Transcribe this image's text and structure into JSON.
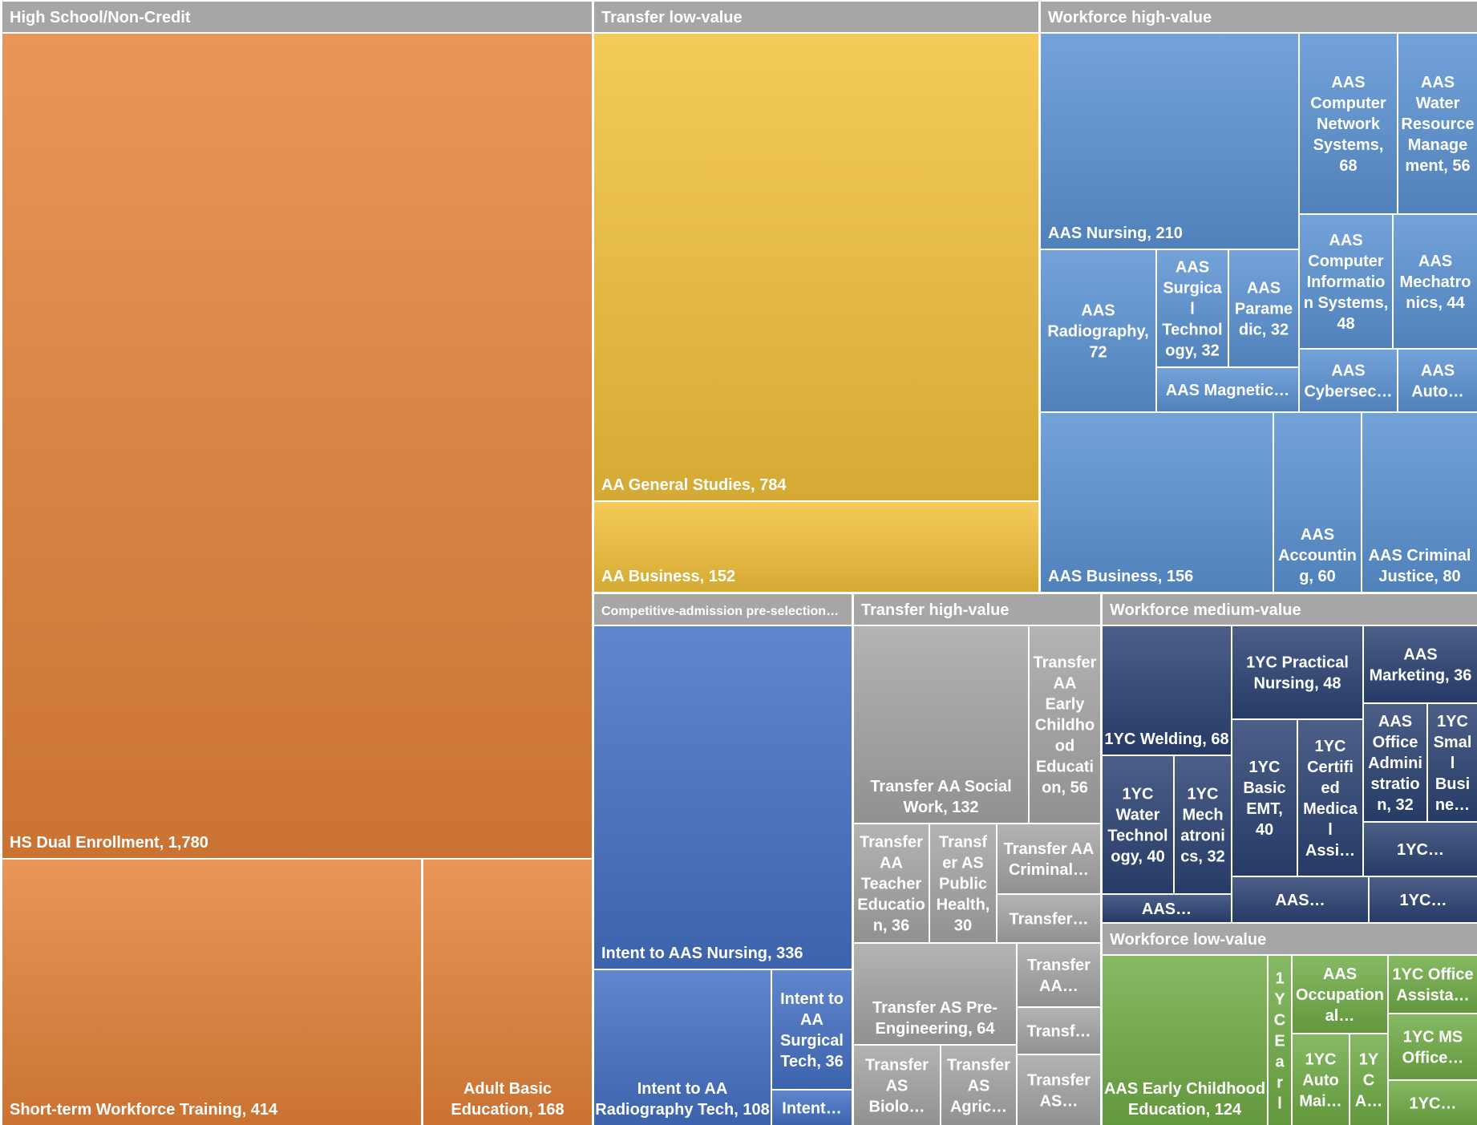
{
  "chart_data": {
    "type": "treemap",
    "groups": [
      {
        "name": "High School/Non-Credit",
        "color": "#E5833A",
        "items": [
          {
            "label": "HS Dual Enrollment, 1,780",
            "value": 1780
          },
          {
            "label": "Short-term Workforce Training, 414",
            "value": 414
          },
          {
            "label": "Adult Basic Education, 168",
            "value": 168
          }
        ]
      },
      {
        "name": "Transfer low-value",
        "color": "#F2C13B",
        "items": [
          {
            "label": "AA General Studies, 784",
            "value": 784
          },
          {
            "label": "AA Business, 152",
            "value": 152
          }
        ]
      },
      {
        "name": "Workforce high-value",
        "color": "#5B93D3",
        "items": [
          {
            "label": "AAS Nursing, 210",
            "value": 210
          },
          {
            "label": "AAS Computer Network Systems, 68",
            "value": 68
          },
          {
            "label": "AAS Water Resource Management, 56",
            "value": 56
          },
          {
            "label": "AAS Computer Information Systems, 48",
            "value": 48
          },
          {
            "label": "AAS Mechatronics, 44",
            "value": 44
          },
          {
            "label": "AAS Cybersec…",
            "value": null
          },
          {
            "label": "AAS Auto…",
            "value": null
          },
          {
            "label": "AAS Radiography, 72",
            "value": 72
          },
          {
            "label": "AAS Surgical Technology, 32",
            "value": 32
          },
          {
            "label": "AAS Paramedic, 32",
            "value": 32
          },
          {
            "label": "AAS Magnetic…",
            "value": null
          },
          {
            "label": "AAS Business, 156",
            "value": 156
          },
          {
            "label": "AAS Accounting, 60",
            "value": 60
          },
          {
            "label": "AAS Criminal Justice, 80",
            "value": 80
          }
        ]
      },
      {
        "name": "Competitive-admission pre-selection…",
        "color": "#4471C4",
        "items": [
          {
            "label": "Intent to AAS Nursing, 336",
            "value": 336
          },
          {
            "label": "Intent to AA Radiography Tech, 108",
            "value": 108
          },
          {
            "label": "Intent to AA Surgical Tech, 36",
            "value": 36
          },
          {
            "label": "Intent…",
            "value": null
          }
        ]
      },
      {
        "name": "Transfer high-value",
        "color": "#A5A5A5",
        "items": [
          {
            "label": "Transfer AA Social Work, 132",
            "value": 132
          },
          {
            "label": "Transfer AA Early Childhood Education, 56",
            "value": 56
          },
          {
            "label": "Transfer AA Teacher Education, 36",
            "value": 36
          },
          {
            "label": "Transfer AS Public Health, 30",
            "value": 30
          },
          {
            "label": "Transfer AA Criminal…",
            "value": null
          },
          {
            "label": "Transfer…",
            "value": null
          },
          {
            "label": "Transfer AS Pre-Engineering, 64",
            "value": 64
          },
          {
            "label": "Transfer AA…",
            "value": null
          },
          {
            "label": "Transf…",
            "value": null
          },
          {
            "label": "Transfer AS…",
            "value": null
          },
          {
            "label": "Transfer AS Biolo…",
            "value": null
          },
          {
            "label": "Transfer AS Agric…",
            "value": null
          }
        ]
      },
      {
        "name": "Workforce medium-value",
        "color": "#2B4373",
        "items": [
          {
            "label": "1YC Welding, 68",
            "value": 68
          },
          {
            "label": "1YC Practical Nursing, 48",
            "value": 48
          },
          {
            "label": "AAS Marketing, 36",
            "value": 36
          },
          {
            "label": "AAS Office Administration, 32",
            "value": 32
          },
          {
            "label": "1YC Small Busine…",
            "value": null
          },
          {
            "label": "1YC Water Technology, 40",
            "value": 40
          },
          {
            "label": "1YC Mechatronics, 32",
            "value": 32
          },
          {
            "label": "1YC Basic EMT, 40",
            "value": 40
          },
          {
            "label": "1YC Certified Medical Assi…",
            "value": null
          },
          {
            "label": "1YC…",
            "value": null
          },
          {
            "label": "AAS…",
            "value": null
          },
          {
            "label": "AAS…",
            "value": null
          },
          {
            "label": "1YC…",
            "value": null
          }
        ]
      },
      {
        "name": "Workforce low-value",
        "color": "#71AD47",
        "items": [
          {
            "label": "AAS Early Childhood Education, 124",
            "value": 124
          },
          {
            "label": "1YC Earl",
            "value": null
          },
          {
            "label": "AAS Occupational…",
            "value": null
          },
          {
            "label": "1YC Office Assista…",
            "value": null
          },
          {
            "label": "1YC MS Office…",
            "value": null
          },
          {
            "label": "1YC Auto Mai…",
            "value": null
          },
          {
            "label": "1YC A…",
            "value": null
          },
          {
            "label": "1YC…",
            "value": null
          }
        ]
      }
    ]
  }
}
